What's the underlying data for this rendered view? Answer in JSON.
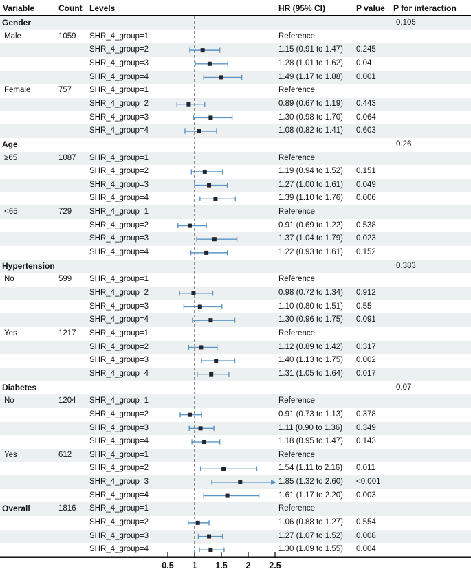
{
  "header": {
    "variable": "Variable",
    "count": "Count",
    "levels": "Levels",
    "hr": "HR (95% CI)",
    "p_value": "P value",
    "p_interaction": "P for interaction"
  },
  "colors": {
    "ci_line": "#5b95c8",
    "marker": "#22262c",
    "row_shade": "#ecf0f1",
    "rule_line": "#000000",
    "ref_line": "#3a3a3a",
    "text": "#141414"
  },
  "chart_data": {
    "type": "forest",
    "title": "",
    "columns": [
      "Variable",
      "Count",
      "Levels",
      "HR (95% CI)",
      "P value",
      "P for interaction"
    ],
    "x_axis": {
      "ticks": [
        0.5,
        1,
        1.5,
        2,
        2.5
      ],
      "tick_labels": [
        "0.5",
        "1",
        "1.5",
        "2",
        "2.5"
      ],
      "reference_line": 1,
      "arrow_clip_above": 2.5
    },
    "rows": [
      {
        "type": "section",
        "label": "Gender",
        "p_interaction": "0.105"
      },
      {
        "type": "data",
        "label": "Male",
        "count": "1059",
        "level": "SHR_4_group=1",
        "hr_text": "Reference",
        "p": ""
      },
      {
        "type": "data",
        "label": "",
        "count": "",
        "level": "SHR_4_group=2",
        "hr": 1.15,
        "lo": 0.91,
        "hi": 1.47,
        "hr_text": "1.15 (0.91 to 1.47)",
        "p": "0.245"
      },
      {
        "type": "data",
        "label": "",
        "count": "",
        "level": "SHR_4_group=3",
        "hr": 1.28,
        "lo": 1.01,
        "hi": 1.62,
        "hr_text": "1.28 (1.01 to 1.62)",
        "p": "0.04"
      },
      {
        "type": "data",
        "label": "",
        "count": "",
        "level": "SHR_4_group=4",
        "hr": 1.49,
        "lo": 1.17,
        "hi": 1.88,
        "hr_text": "1.49 (1.17 to 1.88)",
        "p": "0.001"
      },
      {
        "type": "data",
        "label": "Female",
        "count": "757",
        "level": "SHR_4_group=1",
        "hr_text": "Reference",
        "p": ""
      },
      {
        "type": "data",
        "label": "",
        "count": "",
        "level": "SHR_4_group=2",
        "hr": 0.89,
        "lo": 0.67,
        "hi": 1.19,
        "hr_text": "0.89 (0.67 to 1.19)",
        "p": "0.443"
      },
      {
        "type": "data",
        "label": "",
        "count": "",
        "level": "SHR_4_group=3",
        "hr": 1.3,
        "lo": 0.98,
        "hi": 1.7,
        "hr_text": "1.30 (0.98 to 1.70)",
        "p": "0.064"
      },
      {
        "type": "data",
        "label": "",
        "count": "",
        "level": "SHR_4_group=4",
        "hr": 1.08,
        "lo": 0.82,
        "hi": 1.41,
        "hr_text": "1.08 (0.82 to 1.41)",
        "p": "0.603"
      },
      {
        "type": "section",
        "label": "Age",
        "p_interaction": "0.26"
      },
      {
        "type": "data",
        "label": "≥65",
        "count": "1087",
        "level": "SHR_4_group=1",
        "hr_text": "Reference",
        "p": ""
      },
      {
        "type": "data",
        "label": "",
        "count": "",
        "level": "SHR_4_group=2",
        "hr": 1.19,
        "lo": 0.94,
        "hi": 1.52,
        "hr_text": "1.19 (0.94 to 1.52)",
        "p": "0.151"
      },
      {
        "type": "data",
        "label": "",
        "count": "",
        "level": "SHR_4_group=3",
        "hr": 1.27,
        "lo": 1.0,
        "hi": 1.61,
        "hr_text": "1.27 (1.00 to 1.61)",
        "p": "0.049"
      },
      {
        "type": "data",
        "label": "",
        "count": "",
        "level": "SHR_4_group=4",
        "hr": 1.39,
        "lo": 1.1,
        "hi": 1.76,
        "hr_text": "1.39 (1.10 to 1.76)",
        "p": "0.006"
      },
      {
        "type": "data",
        "label": "<65",
        "count": "729",
        "level": "SHR_4_group=1",
        "hr_text": "Reference",
        "p": ""
      },
      {
        "type": "data",
        "label": "",
        "count": "",
        "level": "SHR_4_group=2",
        "hr": 0.91,
        "lo": 0.69,
        "hi": 1.22,
        "hr_text": "0.91 (0.69 to 1.22)",
        "p": "0.538"
      },
      {
        "type": "data",
        "label": "",
        "count": "",
        "level": "SHR_4_group=3",
        "hr": 1.37,
        "lo": 1.04,
        "hi": 1.79,
        "hr_text": "1.37 (1.04 to 1.79)",
        "p": "0.023"
      },
      {
        "type": "data",
        "label": "",
        "count": "",
        "level": "SHR_4_group=4",
        "hr": 1.22,
        "lo": 0.93,
        "hi": 1.61,
        "hr_text": "1.22 (0.93 to 1.61)",
        "p": "0.152"
      },
      {
        "type": "section",
        "label": "Hypertension",
        "p_interaction": "0.383"
      },
      {
        "type": "data",
        "label": "No",
        "count": "599",
        "level": "SHR_4_group=1",
        "hr_text": "Reference",
        "p": ""
      },
      {
        "type": "data",
        "label": "",
        "count": "",
        "level": "SHR_4_group=2",
        "hr": 0.98,
        "lo": 0.72,
        "hi": 1.34,
        "hr_text": "0.98 (0.72 to 1.34)",
        "p": "0.912"
      },
      {
        "type": "data",
        "label": "",
        "count": "",
        "level": "SHR_4_group=3",
        "hr": 1.1,
        "lo": 0.8,
        "hi": 1.51,
        "hr_text": "1.10 (0.80 to 1.51)",
        "p": "0.55"
      },
      {
        "type": "data",
        "label": "",
        "count": "",
        "level": "SHR_4_group=4",
        "hr": 1.3,
        "lo": 0.96,
        "hi": 1.75,
        "hr_text": "1.30 (0.96 to 1.75)",
        "p": "0.091"
      },
      {
        "type": "data",
        "label": "Yes",
        "count": "1217",
        "level": "SHR_4_group=1",
        "hr_text": "Reference",
        "p": ""
      },
      {
        "type": "data",
        "label": "",
        "count": "",
        "level": "SHR_4_group=2",
        "hr": 1.12,
        "lo": 0.89,
        "hi": 1.42,
        "hr_text": "1.12 (0.89 to 1.42)",
        "p": "0.317"
      },
      {
        "type": "data",
        "label": "",
        "count": "",
        "level": "SHR_4_group=3",
        "hr": 1.4,
        "lo": 1.13,
        "hi": 1.75,
        "hr_text": "1.40 (1.13 to 1.75)",
        "p": "0.002"
      },
      {
        "type": "data",
        "label": "",
        "count": "",
        "level": "SHR_4_group=4",
        "hr": 1.31,
        "lo": 1.05,
        "hi": 1.64,
        "hr_text": "1.31 (1.05 to 1.64)",
        "p": "0.017"
      },
      {
        "type": "section",
        "label": "Diabetes",
        "p_interaction": "0.07"
      },
      {
        "type": "data",
        "label": "No",
        "count": "1204",
        "level": "SHR_4_group=1",
        "hr_text": "Reference",
        "p": ""
      },
      {
        "type": "data",
        "label": "",
        "count": "",
        "level": "SHR_4_group=2",
        "hr": 0.91,
        "lo": 0.73,
        "hi": 1.13,
        "hr_text": "0.91 (0.73 to 1.13)",
        "p": "0.378"
      },
      {
        "type": "data",
        "label": "",
        "count": "",
        "level": "SHR_4_group=3",
        "hr": 1.11,
        "lo": 0.9,
        "hi": 1.36,
        "hr_text": "1.11 (0.90 to 1.36)",
        "p": "0.349"
      },
      {
        "type": "data",
        "label": "",
        "count": "",
        "level": "SHR_4_group=4",
        "hr": 1.18,
        "lo": 0.95,
        "hi": 1.47,
        "hr_text": "1.18 (0.95 to 1.47)",
        "p": "0.143"
      },
      {
        "type": "data",
        "label": "Yes",
        "count": "612",
        "level": "SHR_4_group=1",
        "hr_text": "Reference",
        "p": ""
      },
      {
        "type": "data",
        "label": "",
        "count": "",
        "level": "SHR_4_group=2",
        "hr": 1.54,
        "lo": 1.11,
        "hi": 2.16,
        "hr_text": "1.54 (1.11 to 2.16)",
        "p": "0.011"
      },
      {
        "type": "data",
        "label": "",
        "count": "",
        "level": "SHR_4_group=3",
        "hr": 1.85,
        "lo": 1.32,
        "hi": 2.6,
        "hr_text": "1.85 (1.32 to 2.60)",
        "p": "<0.001"
      },
      {
        "type": "data",
        "label": "",
        "count": "",
        "level": "SHR_4_group=4",
        "hr": 1.61,
        "lo": 1.17,
        "hi": 2.2,
        "hr_text": "1.61 (1.17 to 2.20)",
        "p": "0.003"
      },
      {
        "type": "data",
        "label": "Overall",
        "bold": true,
        "count": "1816",
        "level": "SHR_4_group=1",
        "hr_text": "Reference",
        "p": ""
      },
      {
        "type": "data",
        "label": "",
        "count": "",
        "level": "SHR_4_group=2",
        "hr": 1.06,
        "lo": 0.88,
        "hi": 1.27,
        "hr_text": "1.06 (0.88 to 1.27)",
        "p": "0.554"
      },
      {
        "type": "data",
        "label": "",
        "count": "",
        "level": "SHR_4_group=3",
        "hr": 1.27,
        "lo": 1.07,
        "hi": 1.52,
        "hr_text": "1.27 (1.07 to 1.52)",
        "p": "0.008"
      },
      {
        "type": "data",
        "label": "",
        "count": "",
        "level": "SHR_4_group=4",
        "hr": 1.3,
        "lo": 1.09,
        "hi": 1.55,
        "hr_text": "1.30 (1.09 to 1.55)",
        "p": "0.004"
      }
    ]
  }
}
